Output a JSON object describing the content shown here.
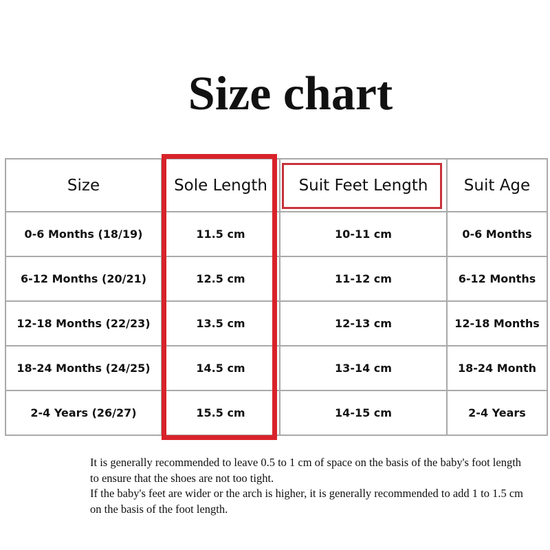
{
  "title": "Size chart",
  "table": {
    "headers": [
      "Size",
      "Sole Length",
      "Suit Feet Length",
      "Suit Age"
    ],
    "rows": [
      [
        "0-6 Months (18/19)",
        "11.5 cm",
        "10-11 cm",
        "0-6 Months"
      ],
      [
        "6-12 Months (20/21)",
        "12.5 cm",
        "11-12 cm",
        "6-12 Months"
      ],
      [
        "12-18 Months (22/23)",
        "13.5 cm",
        "12-13 cm",
        "12-18 Months"
      ],
      [
        "18-24 Months (24/25)",
        "14.5 cm",
        "13-14 cm",
        "18-24 Month"
      ],
      [
        "2-4 Years (26/27)",
        "15.5 cm",
        "14-15 cm",
        "2-4 Years"
      ]
    ]
  },
  "highlight_color": "#d8232a",
  "notes": [
    "It is generally recommended to leave 0.5 to 1 cm of space on the basis of the baby's foot length to ensure that the shoes are not too tight.",
    "If the baby's feet are wider or the arch is higher, it is generally recommended to add 1 to 1.5 cm on the basis of the foot length."
  ]
}
